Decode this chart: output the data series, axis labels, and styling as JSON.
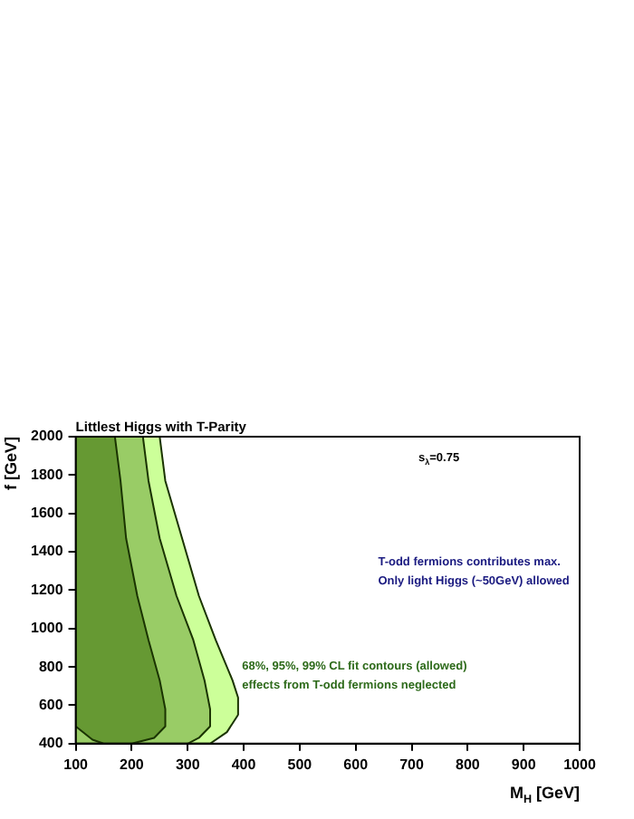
{
  "chart_data": {
    "type": "area",
    "title": "Littlest Higgs with T-Parity",
    "xlabel": "M$_{H}$ [GeV]",
    "ylabel": "f [GeV]",
    "annotations": [
      "s$_{λ}$=0.75",
      "T-odd fermions contributes max.",
      "Only light Higgs (~50GeV) allowed",
      "68%, 95%, 99% CL fit contours (allowed)",
      "effects from T-odd fermions neglected"
    ],
    "series": [
      {
        "color": "#669933",
        "x": [
          100,
          170,
          180,
          190,
          210,
          230,
          250,
          260,
          260,
          240,
          200,
          150,
          130,
          100,
          100
        ],
        "values": [
          2000,
          2000,
          1770,
          1470,
          1170,
          940,
          730,
          580,
          490,
          430,
          400,
          400,
          420,
          490,
          2000
        ]
      },
      {
        "color": "#99cc66",
        "x": [
          100,
          220,
          230,
          250,
          280,
          310,
          330,
          340,
          340,
          320,
          300,
          100,
          100
        ],
        "values": [
          2000,
          2000,
          1770,
          1470,
          1170,
          940,
          730,
          580,
          490,
          430,
          400,
          400,
          2000
        ]
      },
      {
        "color": "#ccff99",
        "x": [
          100,
          250,
          260,
          290,
          320,
          350,
          380,
          390,
          390,
          370,
          340,
          100,
          100
        ],
        "values": [
          2000,
          2000,
          1770,
          1470,
          1170,
          940,
          730,
          640,
          550,
          460,
          400,
          400,
          2000
        ]
      }
    ],
    "xlim": [
      100,
      1000
    ],
    "xticks": [
      100,
      200,
      300,
      400,
      500,
      600,
      700,
      800,
      900,
      1000
    ],
    "ylim": [
      400,
      2000
    ],
    "yticks": [
      400,
      600,
      800,
      1000,
      1200,
      1400,
      1600,
      1800,
      2000
    ],
    "grid": false,
    "legend": false,
    "line_style": "solid",
    "marker": "none"
  }
}
